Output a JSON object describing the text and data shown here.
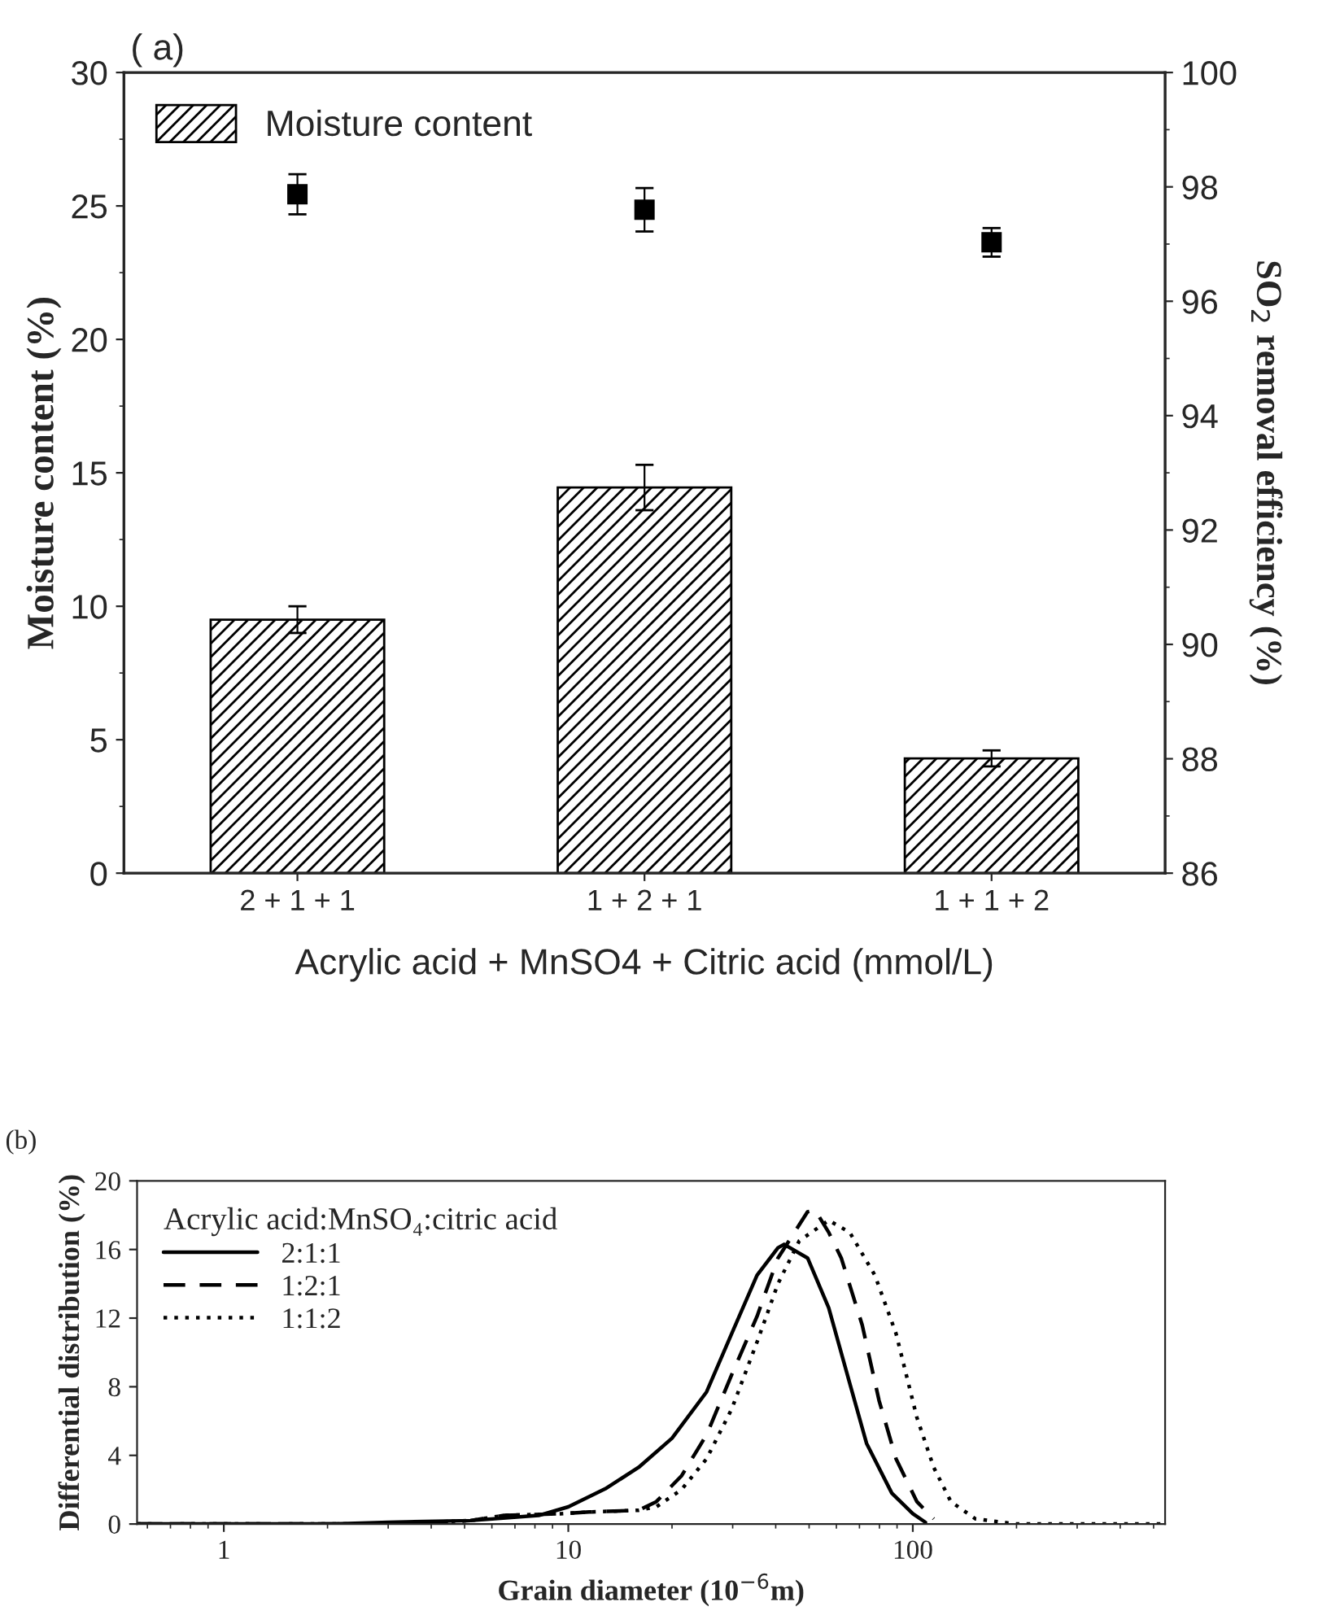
{
  "chart_data": [
    {
      "type": "bar",
      "annotations": [
        "( a)"
      ],
      "xlabel": "Acrylic acid + MnSO4 + Citric acid (mmol/L)",
      "ylabel": "Moisture content (%)",
      "y2label": "SO$_{2}$ removal efficiency (%)",
      "categories": [
        "2 + 1 + 1",
        "1 + 2 + 1",
        "1 + 1 + 2"
      ],
      "series": [
        {
          "name": "Moisture content",
          "type": "bar",
          "color": "#000000",
          "values": [
            9.5,
            14.45,
            4.3
          ],
          "errors": [
            0.5,
            0.85,
            0.3
          ]
        },
        {
          "type": "scatter",
          "axis": "y2",
          "color": "#000000",
          "marker": "square",
          "values": [
            97.87,
            97.6,
            97.03
          ],
          "errors": [
            0.35,
            0.38,
            0.25
          ]
        }
      ],
      "ylim": [
        0,
        30
      ],
      "yticks": [
        0,
        5,
        10,
        15,
        20,
        25,
        30
      ],
      "y2lim": [
        86,
        100
      ],
      "y2ticks": [
        86,
        88,
        90,
        92,
        94,
        96,
        98,
        100
      ],
      "legend": "top left",
      "grid": false
    },
    {
      "type": "line",
      "annotations": [
        "(b)"
      ],
      "xlabel": "Grain diameter (10$^{−6}$m)",
      "ylabel": "Differential distribution (%)",
      "legend_title": "Acrylic acid:MnSO₄:citric acid",
      "log": "x",
      "xlim": [
        0.56,
        540
      ],
      "xticks": [
        1,
        10,
        100
      ],
      "ylim": [
        0,
        20
      ],
      "yticks": [
        0,
        4,
        8,
        12,
        16,
        20
      ],
      "legend": "top left",
      "grid": false,
      "series": [
        {
          "name": "2:1:1",
          "color": "#000000",
          "line_style": "solid",
          "x": [
            0.56,
            2.1,
            3.0,
            5.2,
            8.2,
            10,
            12.8,
            16,
            20,
            25.2,
            29.8,
            35.3,
            40.6,
            42.3,
            49.5,
            57,
            65.6,
            73.4,
            86.9,
            100,
            108.8
          ],
          "values": [
            0,
            0,
            0.1,
            0.2,
            0.5,
            1.0,
            2.05,
            3.3,
            5.0,
            7.7,
            11.1,
            14.5,
            16.1,
            16.3,
            15.5,
            12.6,
            8.2,
            4.7,
            1.8,
            0.6,
            0.1
          ]
        },
        {
          "name": "1:2:1",
          "color": "#000000",
          "line_style": "dashed",
          "x": [
            0.56,
            3.0,
            5.2,
            6.5,
            9.5,
            11.5,
            16,
            18,
            21.3,
            25.2,
            29.8,
            35.3,
            40.6,
            49.5,
            52,
            57,
            62,
            71.3,
            79.8,
            89.4,
            102.8,
            115
          ],
          "values": [
            0,
            0,
            0.2,
            0.5,
            0.6,
            0.7,
            0.8,
            1.3,
            2.8,
            5.2,
            8.7,
            12.1,
            15.5,
            18.2,
            18.3,
            17.0,
            15.5,
            11.6,
            7.2,
            3.8,
            1.3,
            0.3
          ]
        },
        {
          "name": "1:1:2",
          "color": "#000000",
          "line_style": "dotted",
          "x": [
            0.56,
            3.0,
            5.2,
            6.5,
            9.5,
            11.5,
            16,
            18,
            21.3,
            25.2,
            29.8,
            35.3,
            40.6,
            46.8,
            57,
            65.6,
            77.6,
            89.4,
            102.8,
            115,
            129,
            152,
            200,
            540
          ],
          "values": [
            0,
            0,
            0.2,
            0.5,
            0.6,
            0.7,
            0.8,
            1.0,
            2.0,
            3.8,
            6.7,
            10.6,
            14.0,
            16.5,
            17.7,
            17.0,
            14.5,
            11.1,
            6.2,
            3.3,
            1.3,
            0.3,
            0,
            0
          ]
        }
      ]
    }
  ]
}
